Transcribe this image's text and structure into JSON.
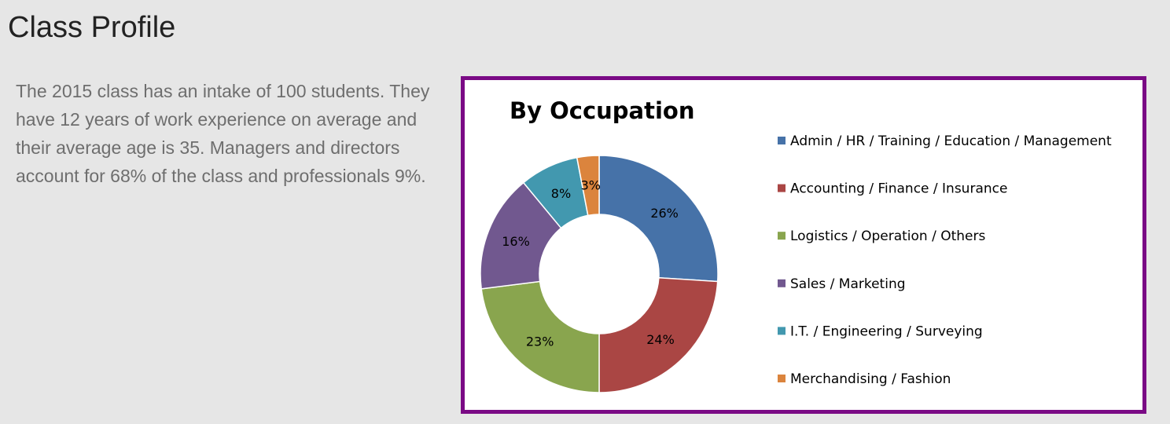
{
  "page": {
    "title": "Class Profile",
    "intro": "The 2015 class has an intake of 100 students. They have 12 years of work experience on average and their average age is 35. Managers and directors account for 68% of the class and professionals 9%."
  },
  "colors": {
    "frame_border": "#7a0a85",
    "background": "#e6e6e6"
  },
  "chart_data": {
    "type": "pie",
    "subtype": "donut",
    "title": "By Occupation",
    "legend_position": "right",
    "unit": "%",
    "series": [
      {
        "name": "Admin / HR / Training / Education / Management",
        "value": 26,
        "label": "26%",
        "color": "#4672a8"
      },
      {
        "name": "Accounting / Finance / Insurance",
        "value": 24,
        "label": "24%",
        "color": "#aa4644"
      },
      {
        "name": "Logistics / Operation / Others",
        "value": 23,
        "label": "23%",
        "color": "#89a54e"
      },
      {
        "name": "Sales / Marketing",
        "value": 16,
        "label": "16%",
        "color": "#71588f"
      },
      {
        "name": "I.T. / Engineering / Surveying",
        "value": 8,
        "label": "8%",
        "color": "#4298af"
      },
      {
        "name": "Merchandising / Fashion",
        "value": 3,
        "label": "3%",
        "color": "#db843d"
      }
    ]
  }
}
